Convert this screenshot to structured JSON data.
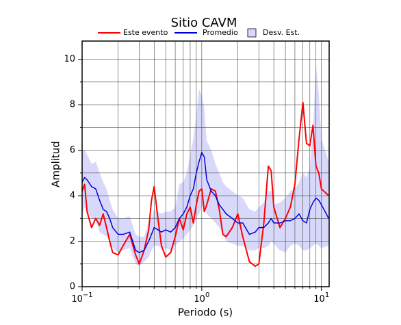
{
  "chart_data": {
    "type": "line",
    "title": "Sitio CAVM",
    "xlabel": "Periodo (s)",
    "ylabel": "Amplitud",
    "xscale": "log",
    "grid": true,
    "xlim": [
      0.1,
      11.6
    ],
    "ylim": [
      0,
      10.8
    ],
    "xticks": [
      {
        "value": 0.1,
        "label": "10",
        "exponent": "−1"
      },
      {
        "value": 1,
        "label": "10",
        "exponent": "0"
      },
      {
        "value": 10,
        "label": "10",
        "exponent": "1"
      }
    ],
    "xminor": [
      0.2,
      0.3,
      0.4,
      0.5,
      0.6,
      0.7,
      0.8,
      0.9,
      2,
      3,
      4,
      5,
      6,
      7,
      8,
      9
    ],
    "yticks": [
      0,
      2,
      4,
      6,
      8,
      10
    ],
    "yminor": [
      1,
      3,
      5,
      7,
      9
    ],
    "x": [
      0.1,
      0.105,
      0.11,
      0.12,
      0.13,
      0.14,
      0.15,
      0.16,
      0.17,
      0.18,
      0.2,
      0.22,
      0.25,
      0.28,
      0.3,
      0.33,
      0.36,
      0.38,
      0.4,
      0.43,
      0.46,
      0.5,
      0.55,
      0.6,
      0.65,
      0.7,
      0.75,
      0.8,
      0.85,
      0.9,
      0.95,
      1.0,
      1.05,
      1.1,
      1.2,
      1.3,
      1.4,
      1.5,
      1.6,
      1.8,
      2.0,
      2.2,
      2.5,
      2.8,
      3.0,
      3.3,
      3.6,
      3.8,
      4.0,
      4.5,
      5.0,
      5.5,
      6.0,
      6.5,
      7.0,
      7.5,
      8.0,
      8.5,
      9.0,
      9.5,
      10,
      11.5
    ],
    "series": [
      {
        "name": "Este evento",
        "color": "#ff0000",
        "values": [
          4.2,
          4.5,
          3.3,
          2.6,
          3.0,
          2.7,
          3.2,
          2.6,
          2.0,
          1.5,
          1.4,
          1.8,
          2.3,
          1.4,
          1.0,
          1.6,
          2.5,
          3.8,
          4.4,
          3.0,
          1.8,
          1.3,
          1.5,
          2.2,
          3.0,
          2.5,
          3.2,
          3.5,
          2.8,
          3.6,
          4.2,
          4.3,
          3.3,
          3.6,
          4.3,
          4.2,
          3.4,
          2.3,
          2.2,
          2.6,
          3.2,
          2.2,
          1.1,
          0.9,
          1.0,
          2.8,
          5.3,
          5.1,
          3.5,
          2.6,
          3.0,
          3.5,
          4.5,
          6.5,
          8.1,
          6.3,
          6.2,
          7.1,
          5.3,
          5.0,
          4.3,
          4.0
        ]
      },
      {
        "name": "Promedio",
        "color": "#0000dd",
        "values": [
          4.6,
          4.8,
          4.7,
          4.4,
          4.3,
          3.8,
          3.4,
          3.3,
          3.0,
          2.6,
          2.3,
          2.3,
          2.4,
          1.6,
          1.5,
          1.6,
          2.0,
          2.3,
          2.6,
          2.5,
          2.4,
          2.5,
          2.4,
          2.6,
          3.0,
          3.2,
          3.5,
          4.0,
          4.3,
          5.0,
          5.5,
          5.9,
          5.7,
          4.7,
          4.2,
          4.0,
          3.6,
          3.4,
          3.2,
          3.0,
          2.8,
          2.8,
          2.3,
          2.4,
          2.6,
          2.6,
          2.8,
          3.0,
          2.8,
          2.8,
          2.9,
          2.9,
          3.0,
          3.2,
          2.9,
          2.8,
          3.4,
          3.7,
          3.9,
          3.8,
          3.6,
          3.0
        ]
      },
      {
        "name": "Desv. Est.",
        "color": "#d8d8fa",
        "lower": [
          3.2,
          3.5,
          3.3,
          3.0,
          2.9,
          2.4,
          2.3,
          2.2,
          2.0,
          1.7,
          1.5,
          1.6,
          1.7,
          1.0,
          0.9,
          1.1,
          1.3,
          1.6,
          1.8,
          1.8,
          1.7,
          1.7,
          1.6,
          1.8,
          2.0,
          2.1,
          2.3,
          2.5,
          2.7,
          3.0,
          3.2,
          3.5,
          3.6,
          3.2,
          3.0,
          2.8,
          2.6,
          2.3,
          2.0,
          1.9,
          1.8,
          1.8,
          1.6,
          1.6,
          1.7,
          1.7,
          1.8,
          2.0,
          1.9,
          1.6,
          1.5,
          1.8,
          1.9,
          1.8,
          1.6,
          1.6,
          1.7,
          1.8,
          1.9,
          1.8,
          1.7,
          1.8
        ],
        "upper": [
          6.0,
          6.0,
          5.8,
          5.4,
          5.5,
          5.0,
          4.6,
          4.3,
          3.8,
          3.4,
          3.0,
          3.0,
          3.1,
          2.3,
          2.2,
          2.2,
          2.8,
          3.0,
          3.4,
          3.3,
          3.2,
          3.3,
          3.3,
          3.5,
          4.5,
          4.6,
          5.0,
          5.8,
          6.5,
          7.5,
          8.7,
          8.4,
          7.8,
          6.4,
          6.0,
          5.4,
          5.0,
          4.6,
          4.4,
          4.2,
          4.0,
          3.9,
          3.4,
          3.3,
          3.5,
          3.7,
          4.2,
          4.2,
          3.6,
          3.7,
          3.9,
          4.2,
          4.3,
          4.6,
          5.0,
          4.8,
          5.2,
          6.8,
          9.8,
          8.5,
          6.5,
          5.5
        ]
      }
    ]
  }
}
